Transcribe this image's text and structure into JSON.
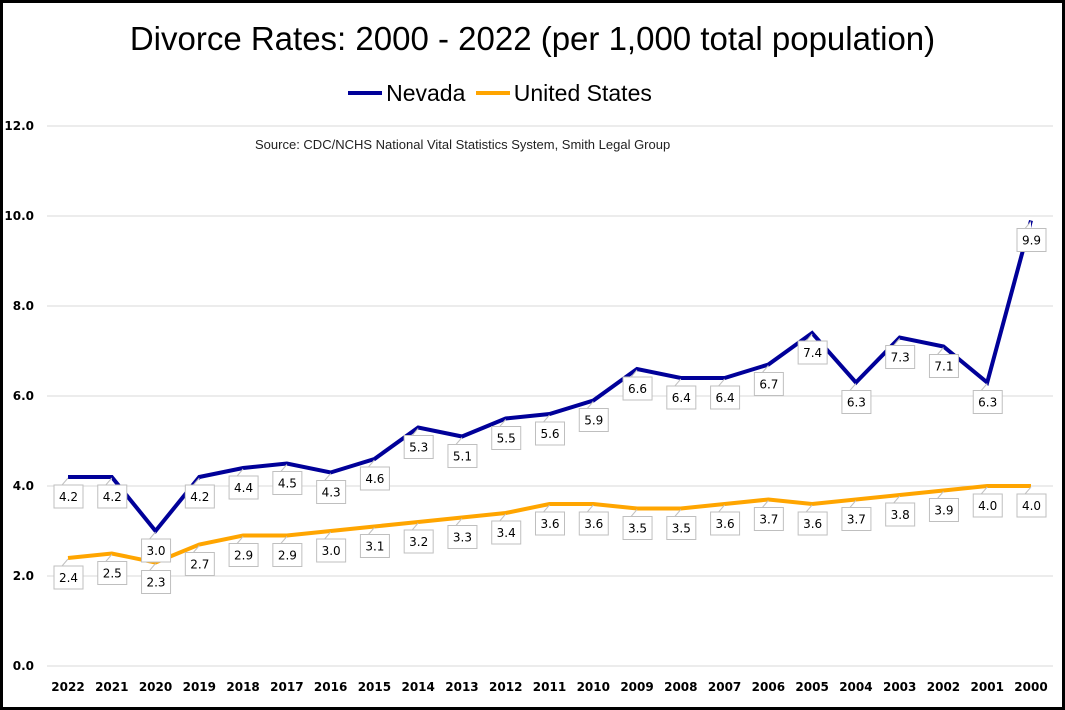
{
  "chart_data": {
    "type": "line",
    "title": "Divorce Rates: 2000 - 2022 (per 1,000 total population)",
    "source": "Source: CDC/NCHS National Vital Statistics System, Smith Legal Group",
    "xlabel": "",
    "ylabel": "",
    "ylim": [
      0,
      12
    ],
    "yticks": [
      "0.0",
      "2.0",
      "4.0",
      "6.0",
      "8.0",
      "10.0",
      "12.0"
    ],
    "grid": true,
    "legend_position": "top-center",
    "categories": [
      "2022",
      "2021",
      "2020",
      "2019",
      "2018",
      "2017",
      "2016",
      "2015",
      "2014",
      "2013",
      "2012",
      "2011",
      "2010",
      "2009",
      "2008",
      "2007",
      "2006",
      "2005",
      "2004",
      "2003",
      "2002",
      "2001",
      "2000"
    ],
    "series": [
      {
        "name": "Nevada",
        "color": "#000099",
        "values": [
          4.2,
          4.2,
          3.0,
          4.2,
          4.4,
          4.5,
          4.3,
          4.6,
          5.3,
          5.1,
          5.5,
          5.6,
          5.9,
          6.6,
          6.4,
          6.4,
          6.7,
          7.4,
          6.3,
          7.3,
          7.1,
          6.3,
          9.9
        ]
      },
      {
        "name": "United States",
        "color": "#FFA500",
        "values": [
          2.4,
          2.5,
          2.3,
          2.7,
          2.9,
          2.9,
          3.0,
          3.1,
          3.2,
          3.3,
          3.4,
          3.6,
          3.6,
          3.5,
          3.5,
          3.6,
          3.7,
          3.6,
          3.7,
          3.8,
          3.9,
          4.0,
          4.0
        ]
      }
    ]
  }
}
